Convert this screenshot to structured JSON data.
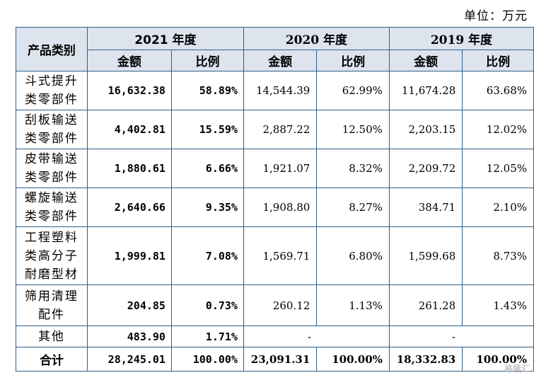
{
  "unit_label": "单位：万元",
  "headers": {
    "category": "产品类别",
    "y2021": "2021 年度",
    "y2020": "2020 年度",
    "y2019": "2019 年度",
    "amount": "金额",
    "ratio": "比例"
  },
  "rows": [
    {
      "lines": [
        "斗式提升",
        "类零部件"
      ],
      "a21": "16,632.38",
      "r21": "58.89%",
      "a20": "14,544.39",
      "r20": "62.99%",
      "a19": "11,674.28",
      "r19": "63.68%"
    },
    {
      "lines": [
        "刮板输送",
        "类零部件"
      ],
      "a21": "4,402.81",
      "r21": "15.59%",
      "a20": "2,887.22",
      "r20": "12.50%",
      "a19": "2,203.15",
      "r19": "12.02%"
    },
    {
      "lines": [
        "皮带输送",
        "类零部件"
      ],
      "a21": "1,880.61",
      "r21": "6.66%",
      "a20": "1,921.07",
      "r20": "8.32%",
      "a19": "2,209.72",
      "r19": "12.05%"
    },
    {
      "lines": [
        "螺旋输送",
        "类零部件"
      ],
      "a21": "2,640.66",
      "r21": "9.35%",
      "a20": "1,908.80",
      "r20": "8.27%",
      "a19": "384.71",
      "r19": "2.10%"
    },
    {
      "lines": [
        "工程塑料",
        "类高分子",
        "耐磨型材"
      ],
      "a21": "1,999.81",
      "r21": "7.08%",
      "a20": "1,569.71",
      "r20": "6.80%",
      "a19": "1,599.68",
      "r19": "8.73%"
    },
    {
      "lines": [
        "筛用清理",
        "配件"
      ],
      "a21": "204.85",
      "r21": "0.73%",
      "a20": "260.12",
      "r20": "1.13%",
      "a19": "261.28",
      "r19": "1.43%"
    },
    {
      "lines": [
        "其他"
      ],
      "a21": "483.90",
      "r21": "1.71%",
      "a20": "-",
      "r20": "",
      "a19": "-",
      "r19": ""
    }
  ],
  "total": {
    "label": "合计",
    "a21": "28,245.01",
    "r21": "100.00%",
    "a20": "23,091.31",
    "r20": "100.00%",
    "a19": "18,332.83",
    "r19": "100.00%"
  },
  "watermark": "格隆汇"
}
